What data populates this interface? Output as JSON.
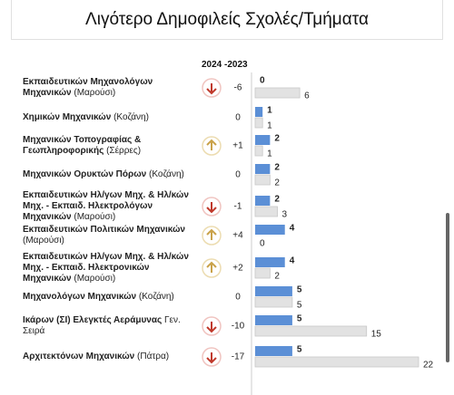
{
  "title": "Λιγότερο Δημοφιλείς Σχολές/Τμήματα",
  "column_header": "2024 -2023",
  "rows": [
    {
      "name": "Εκπαιδευτικών Μηχανολόγων Μηχανικών",
      "location": "(Μαρούσι)",
      "change": "-6",
      "value_2024": 0,
      "value_2023": 6
    },
    {
      "name": "Χημικών Μηχανικών",
      "location": "(Κοζάνη)",
      "change": "0",
      "value_2024": 1,
      "value_2023": 1
    },
    {
      "name": "Μηχανικών Τοπογραφίας & Γεωπληροφορικής",
      "location": "(Σέρρες)",
      "change": "+1",
      "value_2024": 2,
      "value_2023": 1
    },
    {
      "name": "Μηχανικών Ορυκτών Πόρων",
      "location": "(Κοζάνη)",
      "change": "0",
      "value_2024": 2,
      "value_2023": 2
    },
    {
      "name": "Εκπαιδευτικών Ηλ/γων Μηχ. & Ηλ/κών Μηχ. - Εκπαιδ. Ηλεκτρολόγων Μηχανικών",
      "location": "(Μαρούσι)",
      "change": "-1",
      "value_2024": 2,
      "value_2023": 3
    },
    {
      "name": "Εκπαιδευτικών Πολιτικών Μηχανικών",
      "location": "(Μαρούσι)",
      "change": "+4",
      "value_2024": 4,
      "value_2023": 0
    },
    {
      "name": "Εκπαιδευτικών Ηλ/γων Μηχ. & Ηλ/κών Μηχ. - Εκπαιδ. Ηλεκτρονικών Μηχανικών",
      "location": "(Μαρούσι)",
      "change": "+2",
      "value_2024": 4,
      "value_2023": 2
    },
    {
      "name": "Μηχανολόγων Μηχανικών",
      "location": "(Κοζάνη)",
      "change": "0",
      "value_2024": 5,
      "value_2023": 5
    },
    {
      "name": "Ικάρων (ΣΙ) Ελεγκτές Αεράμυνας",
      "location": "Γεν. Σειρά",
      "change": "-10",
      "value_2024": 5,
      "value_2023": 15
    },
    {
      "name": "Αρχιτεκτόνων Μηχανικών",
      "location": "(Πάτρα)",
      "change": "-17",
      "value_2024": 5,
      "value_2023": 22
    }
  ]
}
